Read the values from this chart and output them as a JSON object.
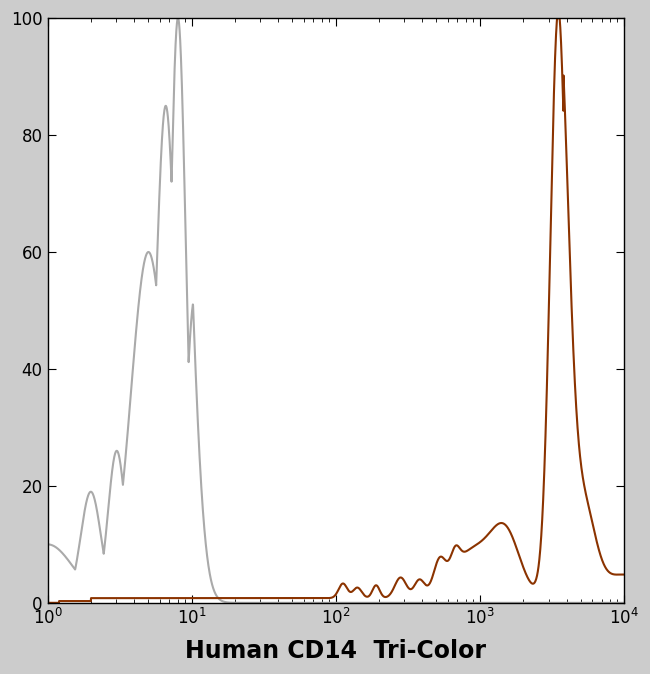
{
  "title": "Human CD14  Tri-Color",
  "title_fontsize": 17,
  "xlim": [
    1,
    10000
  ],
  "ylim": [
    0,
    100
  ],
  "ylabel_ticks": [
    0,
    20,
    40,
    60,
    80,
    100
  ],
  "gray_color": "#aaaaaa",
  "brown_color": "#8B3300",
  "linewidth": 1.5,
  "background_color": "#ffffff",
  "fig_bg_color": "#cccccc"
}
